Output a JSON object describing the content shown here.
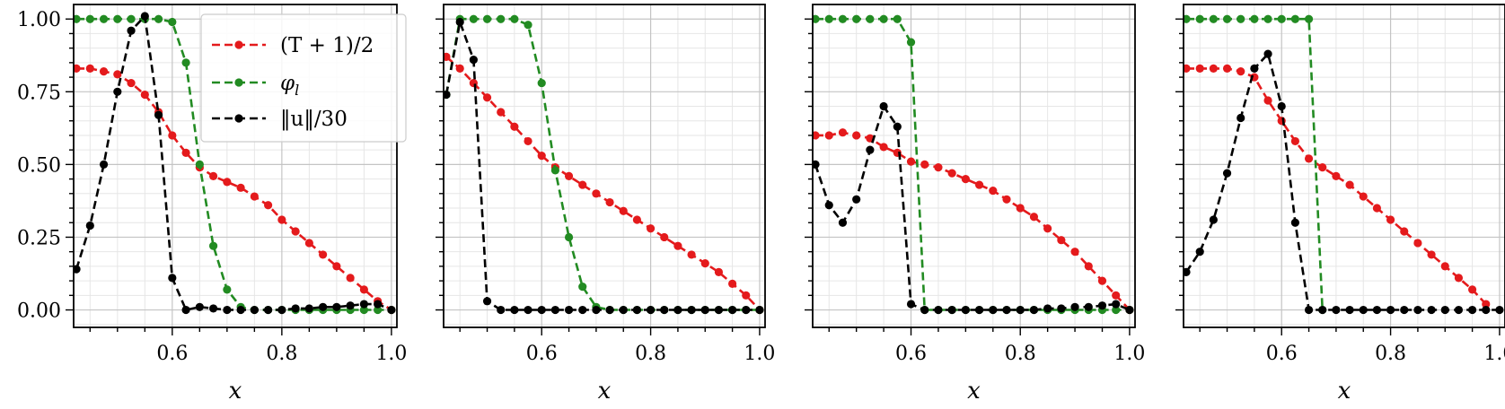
{
  "chart_data": [
    {
      "type": "line",
      "xlabel": "x",
      "xlim": [
        0.42,
        1.01
      ],
      "ylim": [
        -0.06,
        1.05
      ],
      "xticks": [
        0.6,
        0.8,
        1.0
      ],
      "xtick_labels": [
        "0.6",
        "0.8",
        "1.0"
      ],
      "yticks": [
        0,
        0.25,
        0.5,
        0.75,
        1.0
      ],
      "ytick_labels": [
        "0.00",
        "0.25",
        "0.50",
        "0.75",
        "1.00"
      ],
      "show_yticklabels": true,
      "grid": true,
      "legend": {
        "placement": "top-right",
        "entries": [
          "(T + 1)/2",
          "φ",
          "‖u‖/30"
        ],
        "phi_subscript": "l"
      },
      "series": [
        {
          "name": "(T + 1)/2",
          "color": "#e41a1c",
          "x": [
            0.425,
            0.45,
            0.475,
            0.5,
            0.525,
            0.55,
            0.575,
            0.6,
            0.625,
            0.65,
            0.675,
            0.7,
            0.725,
            0.75,
            0.775,
            0.8,
            0.825,
            0.85,
            0.875,
            0.9,
            0.925,
            0.95,
            0.975,
            1.0
          ],
          "y": [
            0.83,
            0.83,
            0.82,
            0.81,
            0.78,
            0.74,
            0.68,
            0.6,
            0.54,
            0.49,
            0.46,
            0.44,
            0.42,
            0.39,
            0.36,
            0.31,
            0.27,
            0.23,
            0.19,
            0.15,
            0.11,
            0.07,
            0.03,
            0.0
          ]
        },
        {
          "name": "φ",
          "color": "#228b22",
          "x": [
            0.425,
            0.45,
            0.475,
            0.5,
            0.525,
            0.55,
            0.575,
            0.6,
            0.625,
            0.65,
            0.675,
            0.7,
            0.725,
            0.75,
            0.775,
            0.8,
            0.825,
            0.85,
            0.875,
            0.9,
            0.925,
            0.95,
            0.975,
            1.0
          ],
          "y": [
            1.0,
            1.0,
            1.0,
            1.0,
            1.0,
            1.0,
            1.0,
            0.99,
            0.85,
            0.5,
            0.22,
            0.07,
            0.01,
            0.0,
            0.0,
            0.0,
            0.0,
            0.0,
            0.0,
            0.0,
            0.0,
            0.0,
            0.0,
            0.0
          ]
        },
        {
          "name": "‖u‖/30",
          "color": "#000000",
          "x": [
            0.425,
            0.45,
            0.475,
            0.5,
            0.525,
            0.55,
            0.575,
            0.6,
            0.625,
            0.65,
            0.675,
            0.7,
            0.725,
            0.75,
            0.775,
            0.8,
            0.825,
            0.85,
            0.875,
            0.9,
            0.925,
            0.95,
            0.975,
            1.0
          ],
          "y": [
            0.14,
            0.29,
            0.5,
            0.75,
            0.96,
            1.01,
            0.67,
            0.11,
            0.0,
            0.01,
            0.005,
            0.0,
            0.0,
            0.0,
            0.0,
            0.0,
            0.005,
            0.005,
            0.01,
            0.01,
            0.015,
            0.02,
            0.02,
            0.0
          ]
        }
      ]
    },
    {
      "type": "line",
      "xlabel": "x",
      "xlim": [
        0.42,
        1.01
      ],
      "ylim": [
        -0.06,
        1.05
      ],
      "xticks": [
        0.6,
        0.8,
        1.0
      ],
      "xtick_labels": [
        "0.6",
        "0.8",
        "1.0"
      ],
      "yticks": [
        0,
        0.25,
        0.5,
        0.75,
        1.0
      ],
      "ytick_labels": [
        "",
        "",
        "",
        "",
        ""
      ],
      "show_yticklabels": false,
      "grid": true,
      "series": [
        {
          "color": "#e41a1c",
          "x": [
            0.425,
            0.45,
            0.475,
            0.5,
            0.525,
            0.55,
            0.575,
            0.6,
            0.625,
            0.65,
            0.675,
            0.7,
            0.725,
            0.75,
            0.775,
            0.8,
            0.825,
            0.85,
            0.875,
            0.9,
            0.925,
            0.95,
            0.975,
            1.0
          ],
          "y": [
            0.87,
            0.83,
            0.78,
            0.73,
            0.68,
            0.63,
            0.58,
            0.53,
            0.49,
            0.46,
            0.43,
            0.4,
            0.37,
            0.34,
            0.31,
            0.28,
            0.25,
            0.22,
            0.19,
            0.16,
            0.13,
            0.09,
            0.05,
            0.0
          ]
        },
        {
          "color": "#228b22",
          "x": [
            0.425,
            0.45,
            0.475,
            0.5,
            0.525,
            0.55,
            0.575,
            0.6,
            0.625,
            0.65,
            0.675,
            0.7,
            0.725,
            0.75,
            0.775,
            0.8,
            0.825,
            0.85,
            0.875,
            0.9,
            0.925,
            0.95,
            0.975,
            1.0
          ],
          "y": [
            0.74,
            1.0,
            1.0,
            1.0,
            1.0,
            1.0,
            0.98,
            0.78,
            0.48,
            0.25,
            0.08,
            0.01,
            0.0,
            0.0,
            0.0,
            0.0,
            0.0,
            0.0,
            0.0,
            0.0,
            0.0,
            0.0,
            0.0,
            0.0
          ]
        },
        {
          "color": "#000000",
          "x": [
            0.425,
            0.45,
            0.475,
            0.5,
            0.525,
            0.55,
            0.575,
            0.6,
            0.625,
            0.65,
            0.675,
            0.7,
            0.725,
            0.75,
            0.775,
            0.8,
            0.825,
            0.85,
            0.875,
            0.9,
            0.925,
            0.95,
            0.975,
            1.0
          ],
          "y": [
            0.74,
            0.99,
            0.86,
            0.03,
            0.0,
            0.0,
            0.0,
            0.0,
            0.0,
            0.0,
            0.0,
            0.0,
            0.0,
            0.0,
            0.0,
            0.0,
            0.0,
            0.0,
            0.0,
            0.0,
            0.0,
            0.0,
            0.0,
            0.0
          ]
        }
      ]
    },
    {
      "type": "line",
      "xlabel": "x",
      "xlim": [
        0.42,
        1.01
      ],
      "ylim": [
        -0.06,
        1.05
      ],
      "xticks": [
        0.6,
        0.8,
        1.0
      ],
      "xtick_labels": [
        "0.6",
        "0.8",
        "1.0"
      ],
      "yticks": [
        0,
        0.25,
        0.5,
        0.75,
        1.0
      ],
      "ytick_labels": [
        "",
        "",
        "",
        "",
        ""
      ],
      "show_yticklabels": false,
      "grid": true,
      "series": [
        {
          "color": "#e41a1c",
          "x": [
            0.425,
            0.45,
            0.475,
            0.5,
            0.525,
            0.55,
            0.575,
            0.6,
            0.625,
            0.65,
            0.675,
            0.7,
            0.725,
            0.75,
            0.775,
            0.8,
            0.825,
            0.85,
            0.875,
            0.9,
            0.925,
            0.95,
            0.975,
            1.0
          ],
          "y": [
            0.6,
            0.6,
            0.61,
            0.6,
            0.59,
            0.56,
            0.54,
            0.51,
            0.5,
            0.49,
            0.47,
            0.45,
            0.43,
            0.41,
            0.38,
            0.35,
            0.32,
            0.28,
            0.24,
            0.2,
            0.15,
            0.1,
            0.05,
            0.0
          ]
        },
        {
          "color": "#228b22",
          "x": [
            0.425,
            0.45,
            0.475,
            0.5,
            0.525,
            0.55,
            0.575,
            0.6,
            0.625,
            0.65,
            0.675,
            0.7,
            0.725,
            0.75,
            0.775,
            0.8,
            0.825,
            0.85,
            0.875,
            0.9,
            0.925,
            0.95,
            0.975,
            1.0
          ],
          "y": [
            1.0,
            1.0,
            1.0,
            1.0,
            1.0,
            1.0,
            1.0,
            0.92,
            0.0,
            0.0,
            0.0,
            0.0,
            0.0,
            0.0,
            0.0,
            0.0,
            0.0,
            0.0,
            0.0,
            0.0,
            0.0,
            0.0,
            0.0,
            0.0
          ]
        },
        {
          "color": "#000000",
          "x": [
            0.425,
            0.45,
            0.475,
            0.5,
            0.525,
            0.55,
            0.575,
            0.6,
            0.625,
            0.65,
            0.675,
            0.7,
            0.725,
            0.75,
            0.775,
            0.8,
            0.825,
            0.85,
            0.875,
            0.9,
            0.925,
            0.95,
            0.975,
            1.0
          ],
          "y": [
            0.5,
            0.36,
            0.3,
            0.38,
            0.55,
            0.7,
            0.63,
            0.02,
            0.0,
            0.0,
            0.0,
            0.0,
            0.0,
            0.0,
            0.0,
            0.0,
            0.0,
            0.005,
            0.005,
            0.01,
            0.01,
            0.015,
            0.02,
            0.0
          ]
        }
      ]
    },
    {
      "type": "line",
      "xlabel": "x",
      "xlim": [
        0.42,
        1.01
      ],
      "ylim": [
        -0.06,
        1.05
      ],
      "xticks": [
        0.6,
        0.8,
        1.0
      ],
      "xtick_labels": [
        "0.6",
        "0.8",
        "1.0"
      ],
      "yticks": [
        0,
        0.25,
        0.5,
        0.75,
        1.0
      ],
      "ytick_labels": [
        "",
        "",
        "",
        "",
        ""
      ],
      "show_yticklabels": false,
      "grid": true,
      "series": [
        {
          "color": "#e41a1c",
          "x": [
            0.425,
            0.45,
            0.475,
            0.5,
            0.525,
            0.55,
            0.575,
            0.6,
            0.625,
            0.65,
            0.675,
            0.7,
            0.725,
            0.75,
            0.775,
            0.8,
            0.825,
            0.85,
            0.875,
            0.9,
            0.925,
            0.95,
            0.975
          ],
          "y": [
            0.83,
            0.83,
            0.83,
            0.83,
            0.82,
            0.8,
            0.72,
            0.65,
            0.58,
            0.52,
            0.49,
            0.46,
            0.43,
            0.39,
            0.35,
            0.31,
            0.27,
            0.23,
            0.19,
            0.15,
            0.11,
            0.07,
            0.02
          ]
        },
        {
          "color": "#228b22",
          "x": [
            0.425,
            0.45,
            0.475,
            0.5,
            0.525,
            0.55,
            0.575,
            0.6,
            0.625,
            0.65,
            0.675
          ],
          "y": [
            1.0,
            1.0,
            1.0,
            1.0,
            1.0,
            1.0,
            1.0,
            1.0,
            1.0,
            1.0,
            0.0
          ]
        },
        {
          "color": "#000000",
          "x": [
            0.425,
            0.45,
            0.475,
            0.5,
            0.525,
            0.55,
            0.575,
            0.6,
            0.625,
            0.65,
            0.675,
            0.7,
            0.725,
            0.75,
            0.775,
            0.8,
            0.825,
            0.85,
            0.875,
            0.9,
            0.925,
            0.95,
            0.975,
            1.0
          ],
          "y": [
            0.13,
            0.2,
            0.31,
            0.47,
            0.66,
            0.83,
            0.88,
            0.7,
            0.3,
            0.0,
            0.0,
            0.0,
            0.0,
            0.0,
            0.0,
            0.0,
            0.0,
            0.0,
            0.0,
            0.0,
            0.0,
            0.0,
            0.0,
            0.0
          ]
        }
      ]
    }
  ]
}
